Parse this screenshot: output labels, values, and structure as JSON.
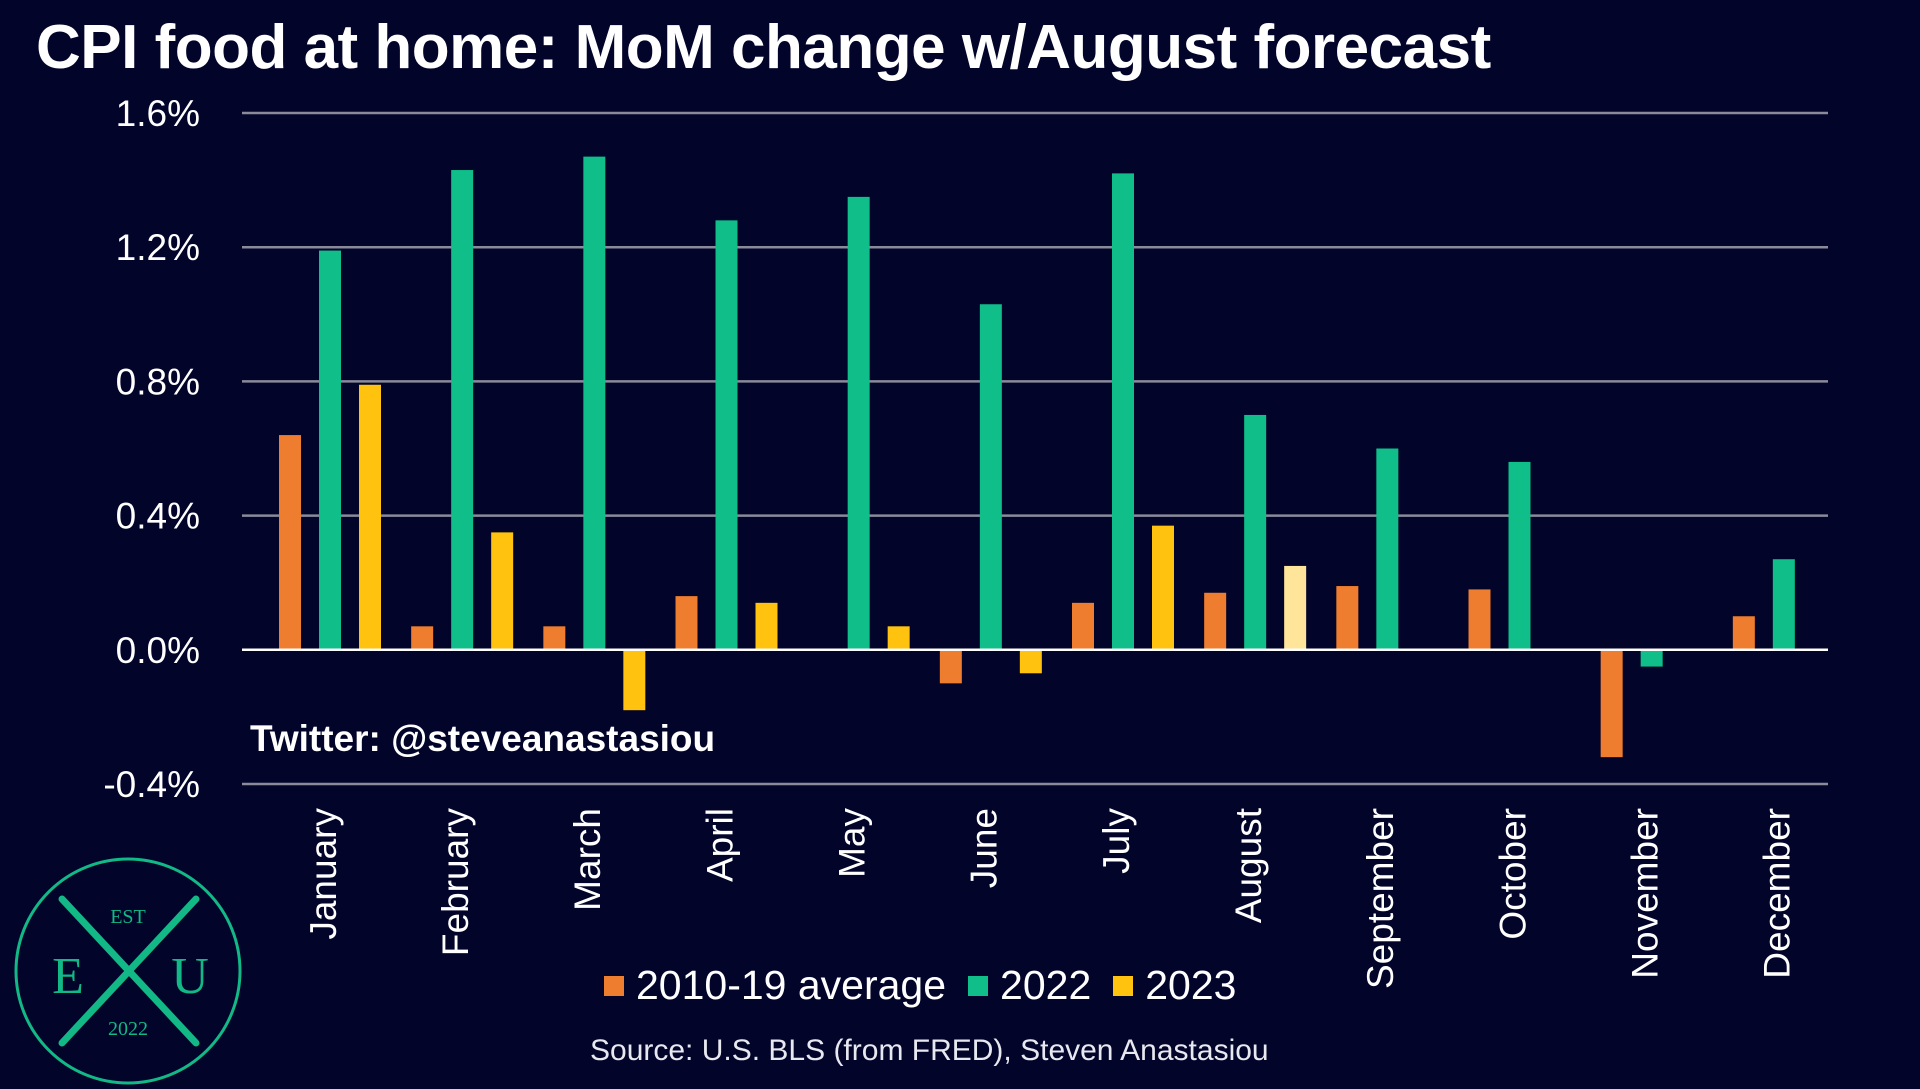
{
  "title": "CPI food at home: MoM change w/August forecast",
  "watermark": "Twitter: @steveanastasiou",
  "source": "Source: U.S. BLS (from FRED), Steven Anastasiou",
  "logo": {
    "top_text": "EST",
    "left_letter": "E",
    "right_letter": "U",
    "bottom_text": "2022",
    "color": "#12b886"
  },
  "colors": {
    "background": "#02042a",
    "grid": "#8a8a9a",
    "avg": "#ef7d2f",
    "y2022": "#0fbe88",
    "y2023": "#ffc20e",
    "forecast": "#ffe59a"
  },
  "chart_data": {
    "type": "bar",
    "title": "CPI food at home: MoM change w/August forecast",
    "xlabel": "",
    "ylabel": "",
    "ylim": [
      -0.4,
      1.6
    ],
    "yticks": [
      1.6,
      1.2,
      0.8,
      0.4,
      0.0,
      -0.4
    ],
    "ytick_labels": [
      "1.6%",
      "1.2%",
      "0.8%",
      "0.4%",
      "0.0%",
      "-0.4%"
    ],
    "grid": true,
    "legend_position": "bottom",
    "categories": [
      "January",
      "February",
      "March",
      "April",
      "May",
      "June",
      "July",
      "August",
      "September",
      "October",
      "November",
      "December"
    ],
    "series": [
      {
        "name": "2010-19 average",
        "color": "#ef7d2f",
        "values": [
          0.64,
          0.07,
          0.07,
          0.16,
          0.0,
          -0.1,
          0.14,
          0.17,
          0.19,
          0.18,
          -0.32,
          0.1
        ]
      },
      {
        "name": "2022",
        "color": "#0fbe88",
        "values": [
          1.19,
          1.43,
          1.47,
          1.28,
          1.35,
          1.03,
          1.42,
          0.7,
          0.6,
          0.56,
          -0.05,
          0.27
        ]
      },
      {
        "name": "2023",
        "color": "#ffc20e",
        "values": [
          0.79,
          0.35,
          -0.18,
          0.14,
          0.07,
          -0.07,
          0.37,
          0.25,
          null,
          null,
          null,
          null
        ],
        "forecast_index": 7,
        "forecast_color": "#ffe59a"
      }
    ]
  }
}
